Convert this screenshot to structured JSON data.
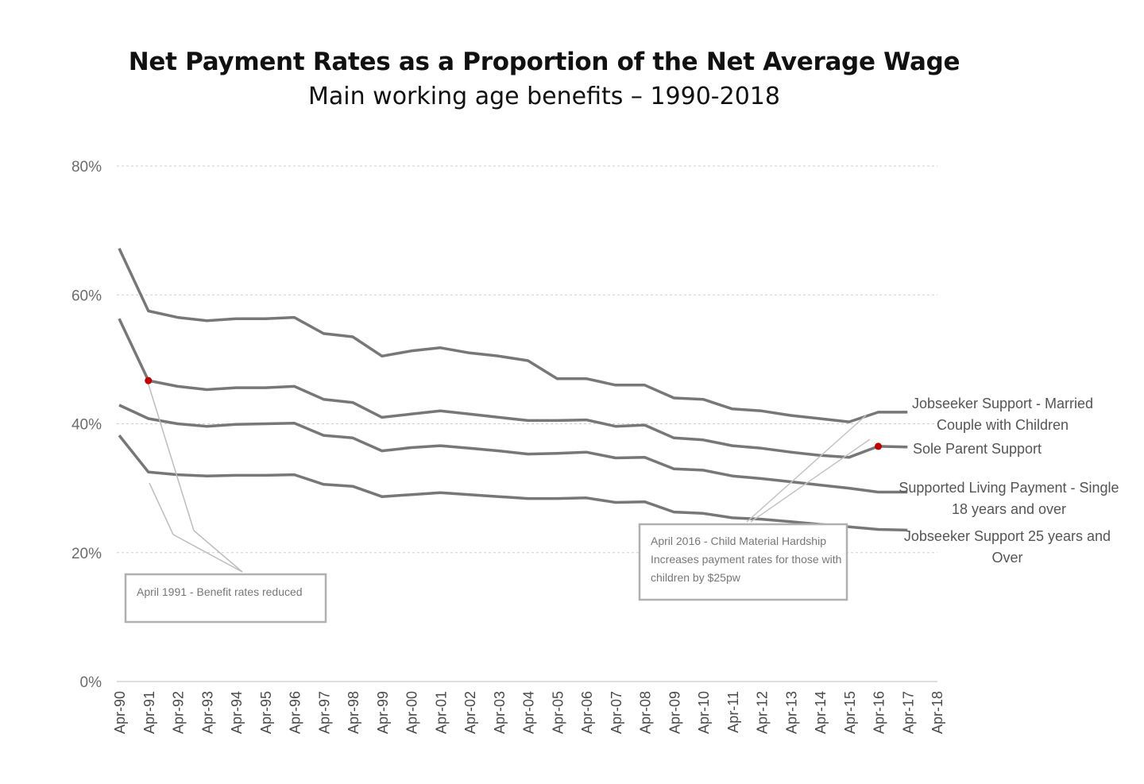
{
  "chart_data": {
    "type": "line",
    "title": "Net Payment Rates as a Proportion of the Net Average Wage",
    "subtitle": "Main working age benefits – 1990-2018",
    "x": [
      "Apr-90",
      "Apr-91",
      "Apr-92",
      "Apr-93",
      "Apr-94",
      "Apr-95",
      "Apr-96",
      "Apr-97",
      "Apr-98",
      "Apr-99",
      "Apr-00",
      "Apr-01",
      "Apr-02",
      "Apr-03",
      "Apr-04",
      "Apr-05",
      "Apr-06",
      "Apr-07",
      "Apr-08",
      "Apr-09",
      "Apr-10",
      "Apr-11",
      "Apr-12",
      "Apr-13",
      "Apr-14",
      "Apr-15",
      "Apr-16",
      "Apr-17",
      "Apr-18"
    ],
    "y_ticks": [
      "0%",
      "20%",
      "40%",
      "60%",
      "80%"
    ],
    "ylim": [
      0,
      80
    ],
    "grid": true,
    "series": [
      {
        "name": "Jobseeker Support - Married Couple with Children",
        "label_lines": [
          "Jobseeker Support - Married",
          "Couple with Children"
        ],
        "values": [
          67.2,
          57.5,
          56.5,
          56.0,
          56.3,
          56.3,
          56.5,
          54.0,
          53.5,
          50.5,
          51.3,
          51.8,
          51.0,
          50.5,
          49.8,
          47.0,
          47.0,
          46.0,
          46.0,
          44.0,
          43.8,
          42.3,
          42.0,
          41.3,
          40.8,
          40.3,
          41.8,
          41.8,
          null
        ]
      },
      {
        "name": "Sole Parent Support",
        "label_lines": [
          "Sole Parent Support"
        ],
        "values": [
          56.3,
          46.7,
          45.8,
          45.3,
          45.6,
          45.6,
          45.8,
          43.8,
          43.3,
          41.0,
          41.5,
          42.0,
          41.5,
          41.0,
          40.5,
          40.5,
          40.6,
          39.6,
          39.8,
          37.8,
          37.5,
          36.6,
          36.2,
          35.6,
          35.1,
          34.8,
          36.5,
          36.4,
          null
        ]
      },
      {
        "name": "Supported Living Payment - Single 18 years and over",
        "label_lines": [
          "Supported Living Payment - Single",
          "18 years and over"
        ],
        "values": [
          42.9,
          40.8,
          40.0,
          39.6,
          39.9,
          40.0,
          40.1,
          38.2,
          37.8,
          35.8,
          36.3,
          36.6,
          36.2,
          35.8,
          35.3,
          35.4,
          35.6,
          34.7,
          34.8,
          33.0,
          32.8,
          31.9,
          31.5,
          31.0,
          30.5,
          30.0,
          29.4,
          29.4,
          null
        ]
      },
      {
        "name": "Jobseeker Support 25 years and Over",
        "label_lines": [
          "Jobseeker Support 25 years and",
          "Over"
        ],
        "values": [
          38.2,
          32.5,
          32.1,
          31.9,
          32.0,
          32.0,
          32.1,
          30.6,
          30.3,
          28.7,
          29.0,
          29.3,
          29.0,
          28.7,
          28.4,
          28.4,
          28.5,
          27.8,
          27.9,
          26.3,
          26.1,
          25.4,
          25.2,
          24.8,
          24.4,
          24.0,
          23.6,
          23.5,
          null
        ]
      }
    ],
    "markers": [
      {
        "series": 1,
        "x": "Apr-91",
        "color": "#c00000"
      },
      {
        "series": 1,
        "x": "Apr-16",
        "color": "#c00000"
      }
    ],
    "annotations": [
      {
        "text_lines": [
          "April 1991 - Benefit rates reduced"
        ]
      },
      {
        "text_lines": [
          "April 2016  - Child Material  Hardship",
          "Increases payment rates for those with",
          "children by $25pw"
        ]
      }
    ],
    "colors": {
      "line": "#777777",
      "grid": "#cfcfcf",
      "marker": "#c00000",
      "box": "#b0b0b0"
    }
  }
}
